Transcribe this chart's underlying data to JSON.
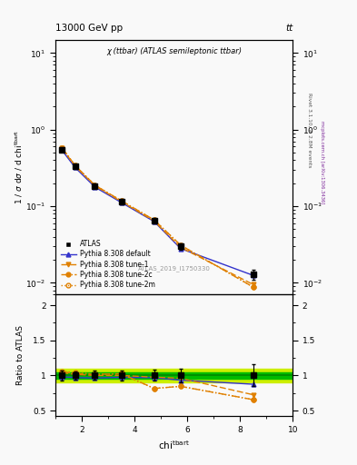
{
  "title_top": "13000 GeV pp",
  "title_right": "tt",
  "plot_title": "χ (ttbar) (ATLAS semileptonic ttbar)",
  "watermark": "ATLAS_2019_I1750330",
  "rivet_label": "Rivet 3.1.10, ≥ 2.8M events",
  "mcplots_label": "mcplots.cern.ch [arXiv:1306.3436]",
  "ylabel_main": "1 / σ dσ / d chi^{tbar t}",
  "ylabel_ratio": "Ratio to ATLAS",
  "x_centers": [
    1.25,
    1.75,
    2.5,
    3.5,
    4.75,
    5.75,
    8.5
  ],
  "atlas_y": [
    0.55,
    0.33,
    0.185,
    0.115,
    0.065,
    0.03,
    0.013
  ],
  "atlas_yerr": [
    0.04,
    0.02,
    0.012,
    0.008,
    0.005,
    0.003,
    0.002
  ],
  "pythia_default_y": [
    0.54,
    0.32,
    0.178,
    0.112,
    0.063,
    0.028,
    0.0125
  ],
  "pythia_default_color": "#3333cc",
  "pythia_tune1_y": [
    0.57,
    0.335,
    0.185,
    0.115,
    0.064,
    0.029,
    0.0095
  ],
  "pythia_tune1_color": "#e08000",
  "pythia_tune2c_y": [
    0.58,
    0.34,
    0.188,
    0.118,
    0.066,
    0.031,
    0.0088
  ],
  "pythia_tune2c_color": "#e08000",
  "pythia_tune2m_y": [
    0.58,
    0.34,
    0.188,
    0.118,
    0.066,
    0.031,
    0.0088
  ],
  "pythia_tune2m_color": "#e08000",
  "ratio_default_y": [
    0.98,
    0.97,
    0.963,
    0.973,
    0.968,
    0.933,
    0.875
  ],
  "ratio_tune1_y": [
    1.04,
    1.015,
    1.0,
    1.0,
    0.975,
    0.96,
    0.725
  ],
  "ratio_tune2c_y": [
    1.05,
    1.03,
    1.015,
    1.025,
    0.815,
    0.845,
    0.655
  ],
  "ratio_tune2m_y": [
    1.06,
    1.04,
    1.02,
    1.02,
    0.815,
    0.845,
    0.655
  ],
  "atlas_band_inner_color": "#00bb00",
  "atlas_band_outer_color": "#ccee00",
  "atlas_band_inner": 0.05,
  "atlas_band_outer": 0.1,
  "ylim_main": [
    0.007,
    15.0
  ],
  "ylim_ratio": [
    0.42,
    2.15
  ],
  "xlim": [
    1.0,
    10.0
  ],
  "bg_color": "#f9f9f9",
  "legend_labels": [
    "ATLAS",
    "Pythia 8.308 default",
    "Pythia 8.308 tune-1",
    "Pythia 8.308 tune-2c",
    "Pythia 8.308 tune-2m"
  ]
}
